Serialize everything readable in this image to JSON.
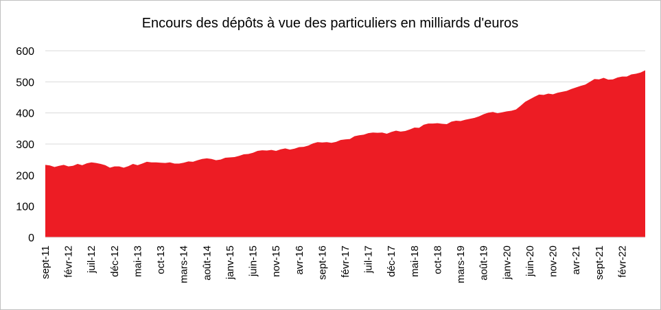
{
  "chart_data": {
    "type": "area",
    "title": "Encours des dépôts à vue des particuliers en milliards d'euros",
    "xlabel": "",
    "ylabel": "",
    "ylim": [
      0,
      600
    ],
    "yticks": [
      0,
      100,
      200,
      300,
      400,
      500,
      600
    ],
    "grid": true,
    "legend": "none",
    "color": "#ED1C24",
    "x_tick_labels": [
      "sept-11",
      "févr-12",
      "juil-12",
      "déc-12",
      "mai-13",
      "oct-13",
      "mars-14",
      "août-14",
      "janv-15",
      "juin-15",
      "nov-15",
      "avr-16",
      "sept-16",
      "févr-17",
      "juil-17",
      "déc-17",
      "mai-18",
      "oct-18",
      "mars-19",
      "août-19",
      "janv-20",
      "juin-20",
      "nov-20",
      "avr-21",
      "sept-21",
      "févr-22"
    ],
    "x_start": "2011-09",
    "x_end": "2022-06",
    "values": [
      233,
      231,
      226,
      230,
      233,
      228,
      230,
      236,
      232,
      238,
      241,
      239,
      236,
      232,
      224,
      228,
      228,
      224,
      229,
      236,
      232,
      237,
      243,
      241,
      241,
      240,
      239,
      241,
      237,
      237,
      240,
      244,
      243,
      248,
      252,
      254,
      252,
      248,
      250,
      256,
      257,
      258,
      262,
      267,
      268,
      272,
      278,
      280,
      279,
      281,
      278,
      283,
      286,
      282,
      285,
      290,
      291,
      295,
      302,
      306,
      305,
      306,
      304,
      307,
      313,
      315,
      316,
      325,
      328,
      330,
      335,
      337,
      336,
      337,
      333,
      339,
      343,
      340,
      342,
      347,
      353,
      352,
      362,
      366,
      366,
      367,
      365,
      364,
      372,
      375,
      374,
      378,
      381,
      384,
      389,
      396,
      401,
      403,
      399,
      402,
      405,
      407,
      411,
      423,
      436,
      444,
      452,
      459,
      458,
      462,
      460,
      465,
      468,
      471,
      477,
      482,
      487,
      491,
      500,
      509,
      508,
      513,
      507,
      508,
      514,
      517,
      517,
      524,
      526,
      530,
      537
    ]
  }
}
